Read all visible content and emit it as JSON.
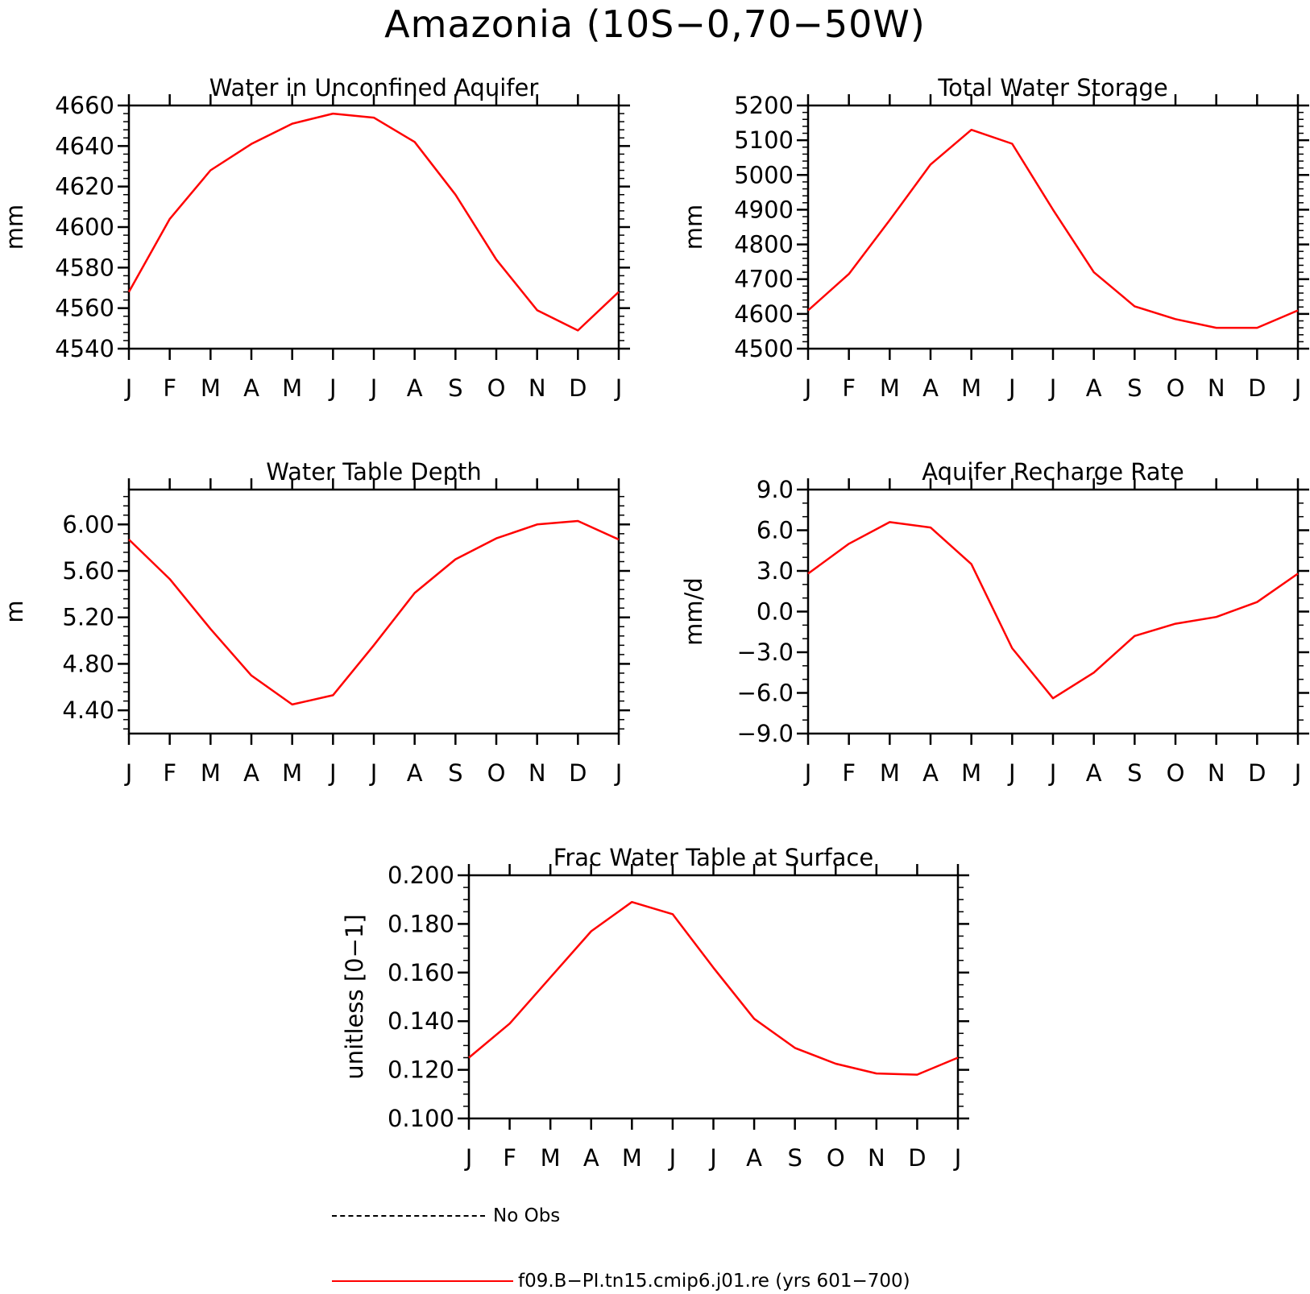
{
  "figure": {
    "title": "Amazonia (10S−0,70−50W)"
  },
  "legend": {
    "entries": [
      {
        "label": "No Obs",
        "style": "dashed",
        "color": "#000000"
      },
      {
        "label": "f09.B−PI.tn15.cmip6.j01.re (yrs 601−700)",
        "style": "solid",
        "color": "#ff0000"
      }
    ]
  },
  "colors": {
    "series": "#ff0000",
    "axes": "#000000",
    "background": "#ffffff"
  },
  "chart_data": [
    {
      "type": "line",
      "title": "Water in Unconfined Aquifer",
      "ylabel": "mm",
      "xlabel": "",
      "categories": [
        "J",
        "F",
        "M",
        "A",
        "M",
        "J",
        "J",
        "A",
        "S",
        "O",
        "N",
        "D",
        "J"
      ],
      "ylim": [
        4540,
        4660
      ],
      "yticks": [
        "4540",
        "4560",
        "4580",
        "4600",
        "4620",
        "4640",
        "4660"
      ],
      "grid": false,
      "series": [
        {
          "name": "f09.B−PI.tn15.cmip6.j01.re (yrs 601−700)",
          "values": [
            4568,
            4604,
            4628,
            4641,
            4651,
            4656,
            4654,
            4642,
            4616,
            4584,
            4559,
            4549,
            4568
          ]
        }
      ]
    },
    {
      "type": "line",
      "title": "Total Water Storage",
      "ylabel": "mm",
      "xlabel": "",
      "categories": [
        "J",
        "F",
        "M",
        "A",
        "M",
        "J",
        "J",
        "A",
        "S",
        "O",
        "N",
        "D",
        "J"
      ],
      "ylim": [
        4500,
        5200
      ],
      "yticks": [
        "4500",
        "4600",
        "4700",
        "4800",
        "4900",
        "5000",
        "5100",
        "5200"
      ],
      "grid": false,
      "series": [
        {
          "name": "f09.B−PI.tn15.cmip6.j01.re (yrs 601−700)",
          "values": [
            4610,
            4715,
            4870,
            5030,
            5130,
            5090,
            4900,
            4720,
            4622,
            4585,
            4560,
            4560,
            4610
          ]
        }
      ]
    },
    {
      "type": "line",
      "title": "Water Table Depth",
      "ylabel": "m",
      "xlabel": "",
      "categories": [
        "J",
        "F",
        "M",
        "A",
        "M",
        "J",
        "J",
        "A",
        "S",
        "O",
        "N",
        "D",
        "J"
      ],
      "ylim": [
        4.2,
        6.3
      ],
      "yticks": [
        "4.40",
        "4.80",
        "5.20",
        "5.60",
        "6.00"
      ],
      "grid": false,
      "series": [
        {
          "name": "f09.B−PI.tn15.cmip6.j01.re (yrs 601−700)",
          "values": [
            5.87,
            5.53,
            5.1,
            4.7,
            4.45,
            4.53,
            4.96,
            5.41,
            5.7,
            5.88,
            6.0,
            6.03,
            5.87
          ]
        }
      ]
    },
    {
      "type": "line",
      "title": "Aquifer Recharge Rate",
      "ylabel": "mm/d",
      "xlabel": "",
      "categories": [
        "J",
        "F",
        "M",
        "A",
        "M",
        "J",
        "J",
        "A",
        "S",
        "O",
        "N",
        "D",
        "J"
      ],
      "ylim": [
        -9.0,
        9.0
      ],
      "yticks": [
        "−9.0",
        "−6.0",
        "−3.0",
        "0.0",
        "3.0",
        "6.0",
        "9.0"
      ],
      "grid": false,
      "series": [
        {
          "name": "f09.B−PI.tn15.cmip6.j01.re (yrs 601−700)",
          "values": [
            2.8,
            5.0,
            6.6,
            6.2,
            3.5,
            -2.7,
            -6.4,
            -4.5,
            -1.8,
            -0.9,
            -0.4,
            0.7,
            2.8
          ]
        }
      ]
    },
    {
      "type": "line",
      "title": "Frac Water Table at Surface",
      "ylabel": "unitless [0−1]",
      "xlabel": "",
      "categories": [
        "J",
        "F",
        "M",
        "A",
        "M",
        "J",
        "J",
        "A",
        "S",
        "O",
        "N",
        "D",
        "J"
      ],
      "ylim": [
        0.1,
        0.2
      ],
      "yticks": [
        "0.100",
        "0.120",
        "0.140",
        "0.160",
        "0.180",
        "0.200"
      ],
      "grid": false,
      "series": [
        {
          "name": "f09.B−PI.tn15.cmip6.j01.re (yrs 601−700)",
          "values": [
            0.125,
            0.139,
            0.158,
            0.177,
            0.189,
            0.184,
            0.162,
            0.141,
            0.129,
            0.1225,
            0.1185,
            0.118,
            0.125
          ]
        }
      ]
    }
  ]
}
